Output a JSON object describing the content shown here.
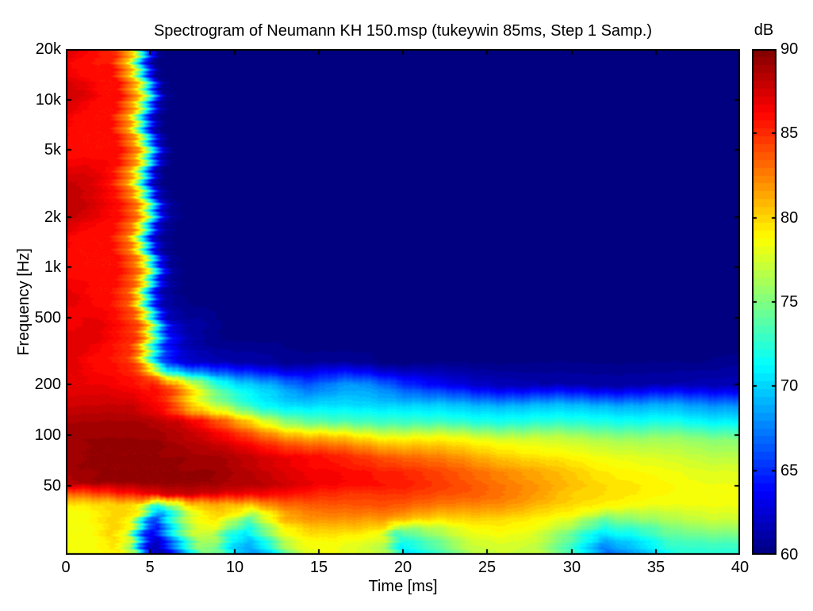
{
  "figure": {
    "background": "#ffffff",
    "axis_color": "#000000",
    "text_color": "#000000"
  },
  "chart_data": {
    "type": "heatmap",
    "title": "Spectrogram of Neumann KH 150.msp (tukeywin 85ms, Step 1 Samp.)",
    "xlabel": "Time [ms]",
    "ylabel": "Frequency [Hz]",
    "x_range": [
      0,
      40
    ],
    "x_ticks": [
      0,
      5,
      10,
      15,
      20,
      25,
      30,
      35,
      40
    ],
    "y_scale": "log",
    "y_range": [
      19.4,
      20000
    ],
    "y_ticks": [
      {
        "value": 20000,
        "label": "20k"
      },
      {
        "value": 10000,
        "label": "10k"
      },
      {
        "value": 5000,
        "label": "5k"
      },
      {
        "value": 2000,
        "label": "2k"
      },
      {
        "value": 1000,
        "label": "1k"
      },
      {
        "value": 500,
        "label": "500"
      },
      {
        "value": 200,
        "label": "200"
      },
      {
        "value": 100,
        "label": "100"
      },
      {
        "value": 50,
        "label": "50"
      }
    ],
    "colorbar": {
      "label": "dB",
      "min": 60,
      "max": 90,
      "ticks": [
        90,
        85,
        80,
        75,
        70,
        65,
        60
      ],
      "inner_tick_values": [
        85,
        80,
        75,
        70,
        65
      ],
      "colormap": "jet",
      "levels": 64
    },
    "contour_step_db": 0.5,
    "grid": {
      "time_ms": [
        0,
        1,
        2,
        3,
        4,
        4.5,
        5,
        5.5,
        6,
        7,
        8,
        9,
        10,
        11,
        12,
        13,
        14,
        15,
        16,
        17,
        18,
        19,
        20,
        22,
        24,
        26,
        28,
        30,
        32,
        34,
        36,
        38,
        40
      ],
      "freq_hz": [
        20,
        23,
        27,
        32,
        38,
        45,
        52,
        62,
        75,
        95,
        120,
        150,
        200,
        270,
        360,
        500,
        700,
        1000,
        1500,
        2200,
        3300,
        5000,
        7500,
        11000,
        16000,
        20000
      ],
      "db": [
        [
          78.5,
          78.5,
          79,
          79.5,
          75.5,
          67,
          62.5,
          61.5,
          63.5,
          70,
          75.5,
          74.5,
          70,
          68.5,
          70.5,
          75,
          78,
          78.5,
          78.5,
          78,
          77.5,
          76,
          70.5,
          73.5,
          77,
          77.5,
          77,
          73,
          67,
          69.5,
          72.5,
          72.5,
          72.5
        ],
        [
          78.5,
          78.5,
          79,
          80,
          77,
          69,
          63.5,
          62,
          64.5,
          71,
          76.5,
          76,
          71,
          69.5,
          72,
          76.5,
          78.5,
          79,
          79,
          78.5,
          78,
          77,
          71.5,
          74.5,
          77.5,
          78,
          77.5,
          74,
          68.5,
          70.5,
          73.5,
          73.5,
          73.5
        ],
        [
          78.5,
          78.5,
          79,
          80.5,
          78.5,
          72,
          66,
          64,
          67,
          74,
          78,
          78,
          74,
          71.5,
          74.5,
          78,
          79.5,
          80.5,
          80.5,
          80.5,
          80,
          79,
          74,
          76.5,
          78.5,
          79,
          78.5,
          76,
          71.5,
          72.5,
          75,
          75.5,
          75.5
        ],
        [
          78.5,
          78.5,
          79.5,
          80.5,
          79,
          74,
          68,
          66,
          70,
          76,
          79,
          80,
          78,
          74.5,
          78,
          81,
          82,
          82.5,
          82.5,
          82.5,
          82,
          82,
          81,
          80.5,
          80.5,
          80,
          79.5,
          78.5,
          74.5,
          76,
          77,
          77.5,
          77.5
        ],
        [
          79,
          79.5,
          80,
          80.5,
          80,
          77,
          73,
          72,
          74,
          79,
          81,
          81.5,
          81,
          80.5,
          82,
          83,
          83.5,
          84,
          84,
          84,
          84,
          84,
          83.5,
          83,
          82.5,
          82,
          81,
          80,
          79,
          78.5,
          78.5,
          78.5,
          78.5
        ],
        [
          83,
          84,
          85,
          86,
          86.5,
          86.5,
          87,
          87,
          87.5,
          88,
          88,
          88,
          87.5,
          87,
          86.5,
          86,
          86,
          85.5,
          85.5,
          85,
          85,
          85,
          85,
          84.5,
          84,
          83,
          82,
          80.5,
          80,
          79.5,
          79,
          78.5,
          78.5
        ],
        [
          88,
          89,
          89.5,
          89.5,
          89.5,
          89.5,
          89.5,
          89.5,
          89.5,
          89.5,
          89.5,
          89.5,
          89,
          89,
          88.5,
          88,
          87.5,
          87,
          87,
          86.5,
          86.5,
          86,
          86,
          85,
          84,
          83,
          82,
          81,
          80,
          79.5,
          79,
          78.5,
          78.5
        ],
        [
          89,
          89.5,
          89.5,
          89.5,
          89.5,
          89.5,
          89.5,
          89.5,
          89.5,
          89.5,
          89.5,
          89.5,
          89,
          88.5,
          88,
          87.5,
          87,
          86.5,
          86.5,
          86,
          86,
          85.5,
          85.5,
          84.5,
          83.5,
          82.5,
          81.5,
          80.5,
          79.5,
          79,
          78.5,
          78,
          78
        ],
        [
          89.5,
          89.5,
          89.5,
          89.5,
          89.5,
          89.5,
          89.5,
          89.5,
          89.5,
          89.5,
          89,
          89,
          88.5,
          88,
          87.5,
          87,
          86.5,
          86,
          85.5,
          85,
          84.5,
          84,
          83.5,
          82.5,
          81.5,
          80.5,
          79.5,
          79,
          78.5,
          78,
          77.5,
          77,
          77
        ],
        [
          89,
          89.5,
          89.5,
          89.5,
          89.5,
          89.5,
          89.5,
          89.5,
          89,
          88.5,
          88,
          87,
          86,
          85,
          84,
          83,
          82,
          81.5,
          81,
          80.5,
          80,
          79.5,
          79.5,
          79,
          78.5,
          78,
          77.5,
          77,
          76.5,
          76,
          76,
          75.5,
          75.5
        ],
        [
          89,
          89,
          89,
          89,
          89,
          89,
          89,
          88.5,
          88.5,
          88,
          86.5,
          84.5,
          82.5,
          80.5,
          78.5,
          76.5,
          75,
          74,
          73.5,
          73.5,
          73.5,
          73.5,
          73.5,
          73,
          72.5,
          72.5,
          72.5,
          72.5,
          72.5,
          72,
          72,
          71.5,
          71.5
        ],
        [
          88,
          88,
          88,
          88,
          88,
          87.5,
          87,
          86.5,
          86,
          82.5,
          79,
          76.5,
          74.5,
          72.5,
          71.5,
          71,
          70.5,
          70.5,
          70.5,
          70.5,
          70.5,
          70.5,
          70.5,
          70,
          69.5,
          69.5,
          69.5,
          69.5,
          69.5,
          69,
          69,
          68.5,
          68.5
        ],
        [
          87,
          87,
          87,
          86.5,
          86,
          85.5,
          86,
          85,
          84,
          80,
          75.5,
          72,
          70.5,
          70,
          69.5,
          68,
          66.5,
          67,
          68,
          68.5,
          68,
          67,
          65.5,
          63.5,
          62.5,
          62,
          61.5,
          61.5,
          61.5,
          61.5,
          61.5,
          62,
          62
        ],
        [
          87,
          87,
          86,
          86,
          85,
          83,
          78,
          72,
          67,
          63.5,
          62.5,
          62,
          61.5,
          61.5,
          61.5,
          61,
          61,
          61,
          61,
          61,
          61,
          60.5,
          60.5,
          60.5,
          60.5,
          60.5,
          60.5,
          60.5,
          60.5,
          60.5,
          60.5,
          60.5,
          61
        ],
        [
          87.5,
          87.5,
          87,
          86,
          85,
          82,
          76,
          70,
          65,
          62,
          61,
          60.5,
          60.5,
          60.5,
          60.5,
          60.5,
          60,
          60,
          60,
          60,
          60,
          60,
          60,
          60,
          60,
          60,
          60,
          60,
          60,
          60,
          60,
          60,
          60
        ],
        [
          86.5,
          87,
          87,
          86,
          84,
          80,
          73,
          66,
          62,
          61,
          61,
          60.5,
          60,
          60,
          60,
          60,
          60,
          60,
          60,
          60,
          60,
          60,
          60,
          60,
          60,
          60,
          60,
          60,
          60,
          60,
          60,
          60,
          60
        ],
        [
          87.5,
          87,
          86,
          86,
          84,
          80,
          72,
          65,
          61.5,
          60.5,
          60,
          60,
          60,
          60,
          60,
          60,
          60,
          60,
          60,
          60,
          60,
          60,
          60,
          60,
          60,
          60,
          60,
          60,
          60,
          60,
          60,
          60,
          60
        ],
        [
          86,
          86,
          86,
          86,
          83,
          79,
          71,
          64,
          61,
          60,
          60,
          60,
          60,
          60,
          60,
          60,
          60,
          60,
          60,
          60,
          60,
          60,
          60,
          60,
          60,
          60,
          60,
          60,
          60,
          60,
          60,
          60,
          60
        ],
        [
          87,
          86,
          86,
          86,
          83,
          78,
          70,
          63,
          61,
          60,
          60,
          60,
          60,
          60,
          60,
          60,
          60,
          60,
          60,
          60,
          60,
          60,
          60,
          60,
          60,
          60,
          60,
          60,
          60,
          60,
          60,
          60,
          60
        ],
        [
          88.5,
          88,
          87,
          86,
          83,
          78,
          70,
          63,
          61,
          60,
          60,
          60,
          60,
          60,
          60,
          60,
          60,
          60,
          60,
          60,
          60,
          60,
          60,
          60,
          60,
          60,
          60,
          60,
          60,
          60,
          60,
          60,
          60
        ],
        [
          88,
          88,
          87.5,
          86,
          82,
          77,
          69,
          62,
          60.5,
          60,
          60,
          60,
          60,
          60,
          60,
          60,
          60,
          60,
          60,
          60,
          60,
          60,
          60,
          60,
          60,
          60,
          60,
          60,
          60,
          60,
          60,
          60,
          60
        ],
        [
          86,
          86,
          86,
          86,
          82,
          76,
          68,
          62,
          60.5,
          60,
          60,
          60,
          60,
          60,
          60,
          60,
          60,
          60,
          60,
          60,
          60,
          60,
          60,
          60,
          60,
          60,
          60,
          60,
          60,
          60,
          60,
          60,
          60
        ],
        [
          87,
          86,
          86,
          86,
          82,
          76,
          68,
          62,
          60.5,
          60,
          60,
          60,
          60,
          60,
          60,
          60,
          60,
          60,
          60,
          60,
          60,
          60,
          60,
          60,
          60,
          60,
          60,
          60,
          60,
          60,
          60,
          60,
          60
        ],
        [
          88,
          87.5,
          86,
          86,
          81,
          75,
          67,
          61,
          60.5,
          60,
          60,
          60,
          60,
          60,
          60,
          60,
          60,
          60,
          60,
          60,
          60,
          60,
          60,
          60,
          60,
          60,
          60,
          60,
          60,
          60,
          60,
          60,
          60
        ],
        [
          87,
          86,
          86,
          86,
          81,
          74,
          66,
          61,
          60,
          60,
          60,
          60,
          60,
          60,
          60,
          60,
          60,
          60,
          60,
          60,
          60,
          60,
          60,
          60,
          60,
          60,
          60,
          60,
          60,
          60,
          60,
          60,
          60
        ],
        [
          87.5,
          87,
          86,
          85,
          80,
          73,
          65,
          61,
          60,
          60,
          60,
          60,
          60,
          60,
          60,
          60,
          60,
          60,
          60,
          60,
          60,
          60,
          60,
          60,
          60,
          60,
          60,
          60,
          60,
          60,
          60,
          60,
          60
        ]
      ]
    }
  }
}
